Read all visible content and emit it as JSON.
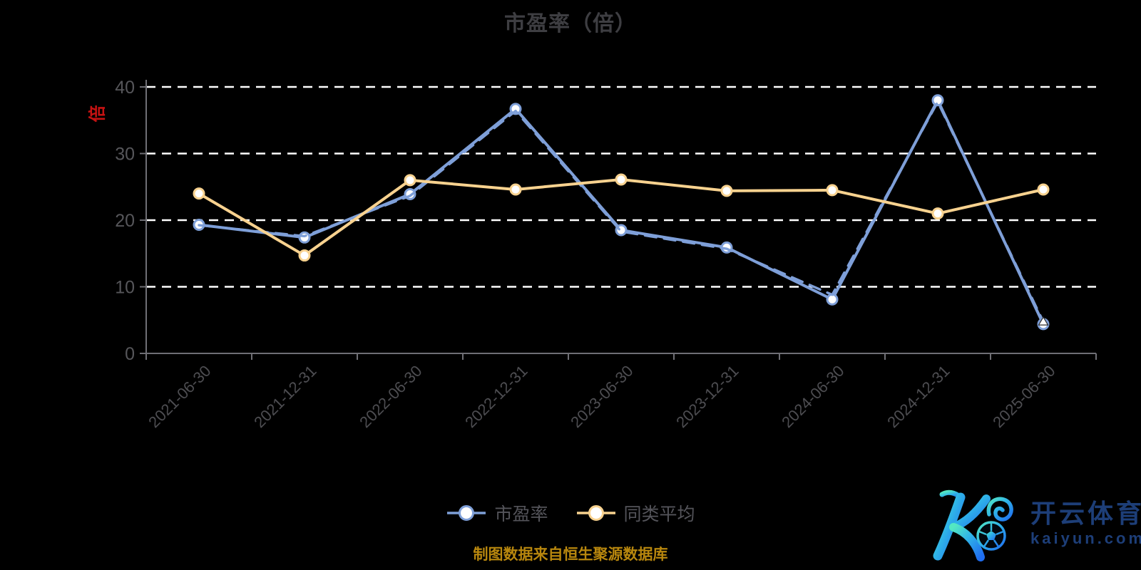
{
  "title": "市盈率（倍）",
  "y_axis_unit": "倍",
  "footer": {
    "caption": "制图数据来自恒生聚源数据库"
  },
  "legend": [
    {
      "label": "市盈率",
      "color": "#7e9fd8"
    },
    {
      "label": "同类平均",
      "color": "#f8d28f"
    }
  ],
  "watermark": {
    "brand": "开云体育",
    "domain": "kaiyun.com"
  },
  "colors": {
    "background": "#000000",
    "title_text": "#3e3e42",
    "axis_line": "#6f6f75",
    "gridline": "#ffffff",
    "y_label": "#56565a",
    "x_label": "#4d4d51",
    "legend_text": "#54545a",
    "unit_red": "#c51212",
    "caption_gold": "#b8870e",
    "series_pe_blue": "#7e9fd8",
    "series_peer_yellow": "#f8d28f",
    "watermark_navy": "#1d3e78",
    "logo_gradient": [
      "#53e8c2",
      "#2fb3e8",
      "#1f6df0"
    ]
  },
  "chart_data": {
    "type": "line",
    "title": "市盈率（倍）",
    "y_unit": "倍",
    "categories": [
      "2021-06-30",
      "2021-12-31",
      "2022-06-30",
      "2022-12-31",
      "2023-06-30",
      "2023-12-31",
      "2024-06-30",
      "2024-12-31",
      "2025-06-30"
    ],
    "series": [
      {
        "name": "市盈率",
        "color": "#7e9fd8",
        "style": "solid",
        "marker": "circle",
        "in_legend": true,
        "values": [
          19.3,
          17.4,
          23.9,
          36.7,
          18.5,
          15.9,
          8.1,
          38.0,
          4.4
        ]
      },
      {
        "name": "市盈率",
        "color": "#7e9fd8",
        "style": "dashed",
        "marker": "none",
        "end_marker": "triangle",
        "in_legend": false,
        "values": [
          19.25,
          17.6,
          23.65,
          36.4,
          18.3,
          15.7,
          8.8,
          37.75,
          4.75
        ]
      },
      {
        "name": "同类平均",
        "color": "#f8d28f",
        "style": "solid",
        "marker": "circle",
        "in_legend": true,
        "values": [
          24.0,
          14.7,
          26.0,
          24.6,
          26.1,
          24.4,
          24.5,
          21.0,
          24.6
        ]
      }
    ],
    "ylim": [
      0,
      40
    ],
    "y_ticks": [
      0,
      10,
      20,
      30,
      40
    ],
    "grid": "horizontal-dashed-white",
    "legend_position": "bottom-center",
    "x_label_rotation": -45
  }
}
